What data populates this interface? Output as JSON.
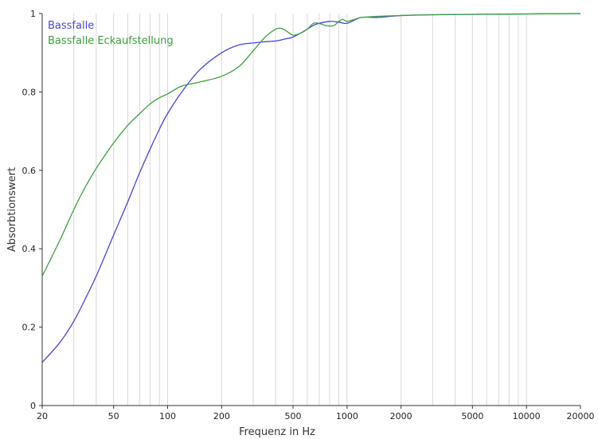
{
  "chart_data": {
    "type": "line",
    "xlabel": "Frequenz in Hz",
    "ylabel": "Absorbtionswert",
    "x_scale": "log",
    "xlim": [
      20,
      20000
    ],
    "ylim": [
      0,
      1
    ],
    "x_ticks": [
      20,
      50,
      100,
      200,
      500,
      1000,
      2000,
      5000,
      10000,
      20000
    ],
    "x_tick_labels": [
      "20",
      "50",
      "100",
      "200",
      "500",
      "1000",
      "2000",
      "5000",
      "10000",
      "20000"
    ],
    "x_minor_gridlines": [
      30,
      40,
      60,
      70,
      80,
      90,
      300,
      400,
      600,
      700,
      800,
      900,
      3000,
      4000,
      6000,
      7000,
      8000,
      9000
    ],
    "y_ticks": [
      0,
      0.2,
      0.4,
      0.6,
      0.8,
      1
    ],
    "y_tick_labels": [
      "0",
      "0.2",
      "0.4",
      "0.6",
      "0.8",
      "1"
    ],
    "grid": "vertical",
    "legend_position": "top-left",
    "series": [
      {
        "name": "Bassfalle",
        "color": "#4545d6",
        "x": [
          20,
          25,
          30,
          35,
          40,
          45,
          50,
          60,
          70,
          80,
          90,
          100,
          120,
          150,
          200,
          250,
          300,
          350,
          400,
          450,
          500,
          550,
          600,
          650,
          700,
          800,
          900,
          1000,
          1200,
          1500,
          2000,
          3000,
          5000,
          10000,
          20000
        ],
        "y": [
          0.11,
          0.16,
          0.215,
          0.275,
          0.33,
          0.385,
          0.435,
          0.52,
          0.595,
          0.655,
          0.705,
          0.745,
          0.8,
          0.855,
          0.9,
          0.92,
          0.925,
          0.928,
          0.93,
          0.935,
          0.94,
          0.95,
          0.96,
          0.97,
          0.975,
          0.98,
          0.978,
          0.975,
          0.99,
          0.99,
          0.995,
          0.997,
          0.998,
          0.999,
          1.0
        ]
      },
      {
        "name": "Bassfalle Eckaufstellung",
        "color": "#3aa03a",
        "x": [
          20,
          25,
          30,
          35,
          40,
          45,
          50,
          60,
          70,
          80,
          90,
          100,
          120,
          150,
          200,
          250,
          300,
          350,
          400,
          430,
          460,
          500,
          550,
          600,
          650,
          700,
          750,
          800,
          850,
          900,
          950,
          1000,
          1100,
          1200,
          1500,
          2000,
          3000,
          5000,
          10000,
          20000
        ],
        "y": [
          0.33,
          0.42,
          0.5,
          0.56,
          0.605,
          0.64,
          0.67,
          0.715,
          0.745,
          0.77,
          0.785,
          0.795,
          0.815,
          0.825,
          0.84,
          0.865,
          0.905,
          0.94,
          0.96,
          0.962,
          0.955,
          0.945,
          0.95,
          0.96,
          0.975,
          0.975,
          0.97,
          0.968,
          0.97,
          0.98,
          0.985,
          0.98,
          0.985,
          0.99,
          0.993,
          0.995,
          0.997,
          0.998,
          0.999,
          1.0
        ]
      }
    ]
  }
}
